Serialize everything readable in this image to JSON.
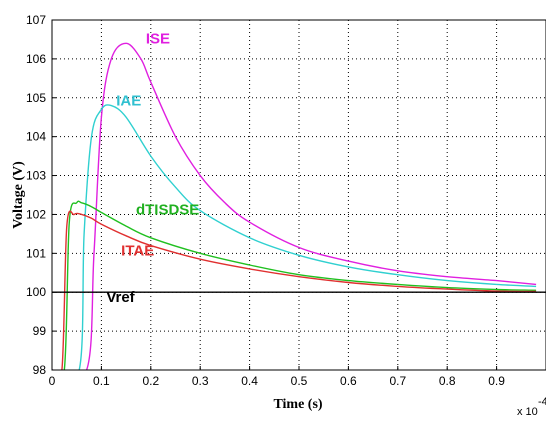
{
  "chart_data": {
    "type": "line",
    "title": "",
    "xlabel": "Time (s)",
    "ylabel": "Voltage (V)",
    "x_multiplier": "x 10",
    "x_multiplier_exp": "-4",
    "xlim": [
      0,
      1.0
    ],
    "ylim": [
      98,
      107
    ],
    "xticks": [
      "0",
      "0.1",
      "0.2",
      "0.3",
      "0.4",
      "0.5",
      "0.6",
      "0.7",
      "0.8",
      "0.9"
    ],
    "yticks": [
      "98",
      "99",
      "100",
      "101",
      "102",
      "103",
      "104",
      "105",
      "106",
      "107"
    ],
    "grid": true,
    "series": [
      {
        "name": "ISE",
        "color": "#e020e0",
        "x": [
          0.0,
          0.07,
          0.085,
          0.1,
          0.12,
          0.15,
          0.18,
          0.2,
          0.25,
          0.3,
          0.35,
          0.4,
          0.5,
          0.6,
          0.7,
          0.8,
          0.9,
          0.98
        ],
        "y": [
          98,
          98,
          101,
          104.5,
          106.0,
          106.4,
          106.0,
          105.4,
          104.0,
          103.0,
          102.3,
          101.8,
          101.15,
          100.8,
          100.55,
          100.4,
          100.3,
          100.2
        ]
      },
      {
        "name": "IAE",
        "color": "#30d0d0",
        "x": [
          0.0,
          0.055,
          0.065,
          0.08,
          0.1,
          0.12,
          0.15,
          0.2,
          0.25,
          0.3,
          0.4,
          0.5,
          0.6,
          0.7,
          0.8,
          0.9,
          0.98
        ],
        "y": [
          98,
          98,
          101.5,
          104.0,
          104.7,
          104.8,
          104.5,
          103.5,
          102.7,
          102.1,
          101.4,
          100.95,
          100.65,
          100.45,
          100.3,
          100.2,
          100.15
        ]
      },
      {
        "name": "dTISDSE",
        "color": "#20c020",
        "x": [
          0.0,
          0.025,
          0.035,
          0.05,
          0.06,
          0.08,
          0.1,
          0.15,
          0.2,
          0.3,
          0.4,
          0.5,
          0.6,
          0.7,
          0.8,
          0.9,
          0.98
        ],
        "y": [
          98,
          98,
          101.8,
          102.3,
          102.3,
          102.2,
          102.05,
          101.7,
          101.4,
          101.0,
          100.7,
          100.45,
          100.3,
          100.2,
          100.12,
          100.07,
          100.05
        ]
      },
      {
        "name": "ITAE",
        "color": "#e03030",
        "x": [
          0.0,
          0.02,
          0.03,
          0.045,
          0.06,
          0.08,
          0.1,
          0.15,
          0.2,
          0.3,
          0.4,
          0.5,
          0.6,
          0.7,
          0.8,
          0.9,
          0.98
        ],
        "y": [
          98,
          98,
          101.7,
          102.0,
          102.0,
          101.9,
          101.75,
          101.45,
          101.2,
          100.85,
          100.6,
          100.4,
          100.25,
          100.15,
          100.08,
          100.03,
          100.02
        ]
      },
      {
        "name": "Vref",
        "color": "#000000",
        "x": [
          0.0,
          1.0
        ],
        "y": [
          100,
          100
        ]
      }
    ],
    "annotations": [
      {
        "text": "ISE",
        "color": "#e020e0",
        "x": 0.19,
        "y": 106.4
      },
      {
        "text": "IAE",
        "color": "#30c0d0",
        "x": 0.13,
        "y": 104.8
      },
      {
        "text": "dTISDSE",
        "color": "#20b020",
        "x": 0.17,
        "y": 102.0
      },
      {
        "text": "ITAE",
        "color": "#e03030",
        "x": 0.14,
        "y": 100.95
      },
      {
        "text": "Vref",
        "color": "#000000",
        "x": 0.11,
        "y": 99.75
      }
    ]
  }
}
